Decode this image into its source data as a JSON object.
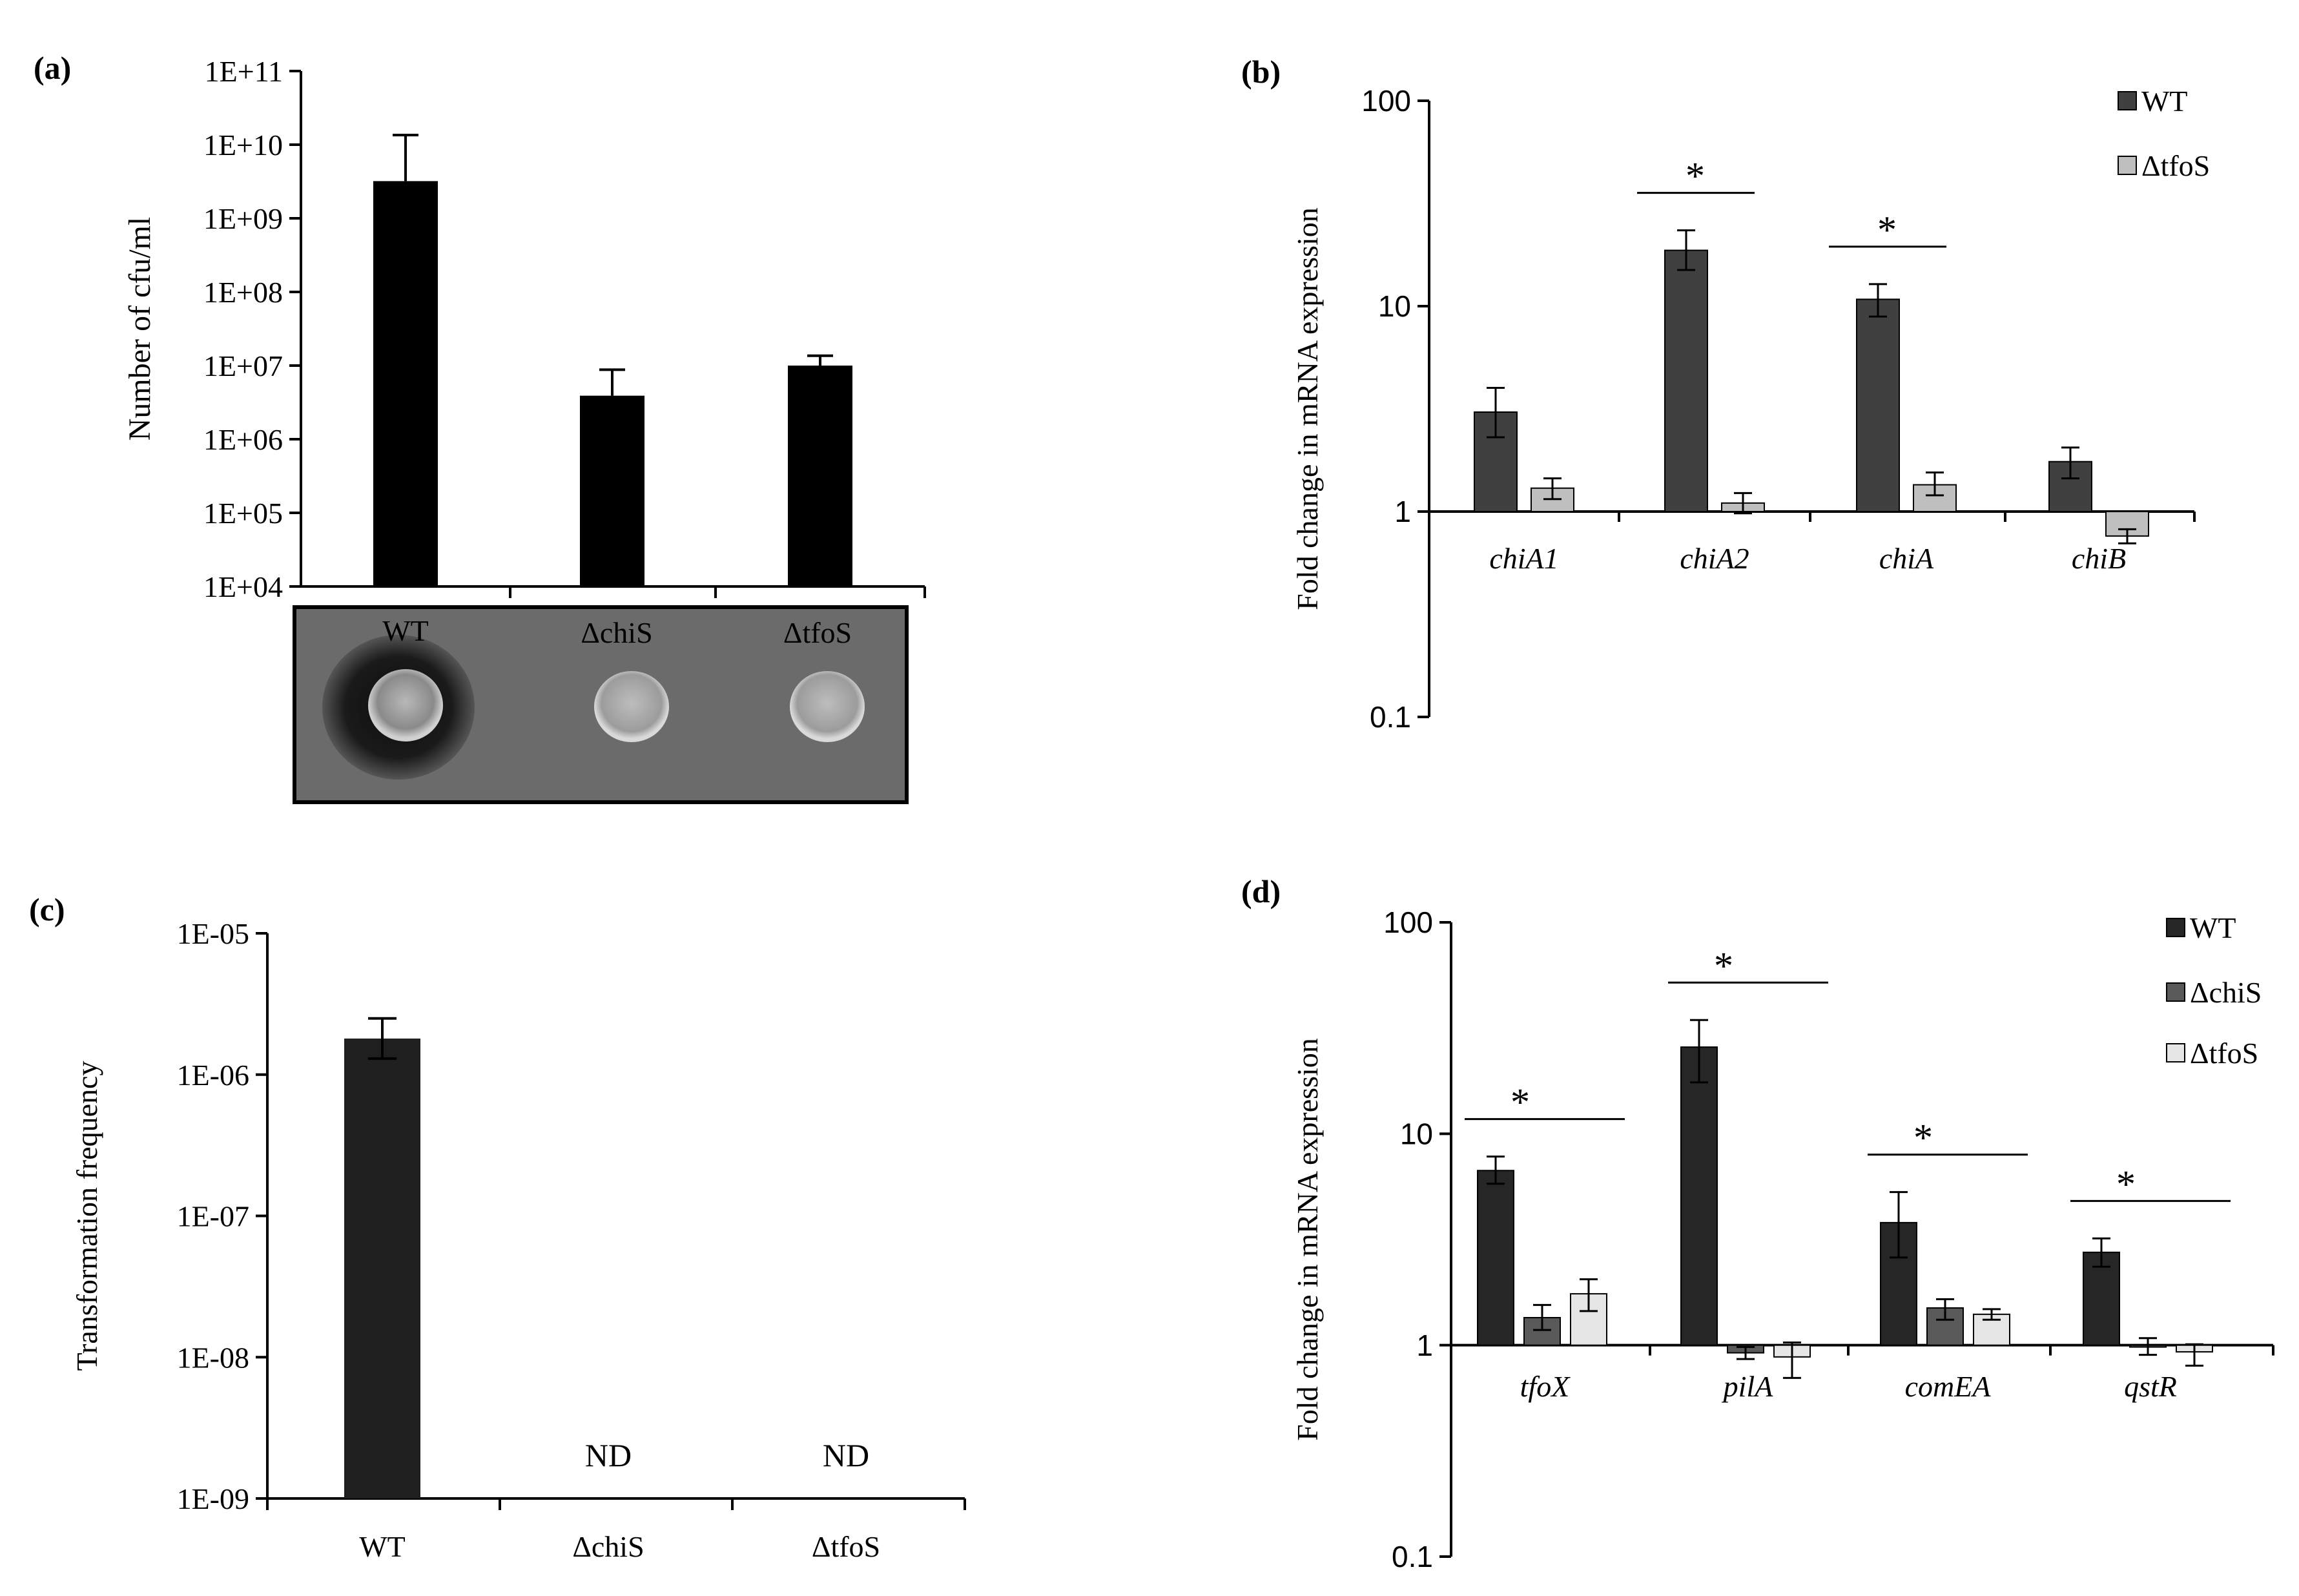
{
  "figure": {
    "panel_labels": [
      "(a)",
      "(b)",
      "(c)",
      "(d)"
    ],
    "plate_labels": [
      "WT",
      "ΔchiS",
      "ΔtfoS"
    ]
  },
  "chart_data": [
    {
      "panel": "(a)",
      "type": "bar",
      "scale": "log10",
      "ylabel": "Number of cfu/ml",
      "ylim": [
        10000,
        100000000000
      ],
      "yticks": [
        10000,
        100000,
        1000000,
        10000000,
        100000000,
        1000000000,
        10000000000,
        100000000000
      ],
      "ytick_labels": [
        "1E+04",
        "1E+05",
        "1E+06",
        "1E+07",
        "1E+08",
        "1E+09",
        "1E+10",
        "1E+11"
      ],
      "categories": [
        "WT",
        "ΔchiS",
        "ΔtfoS"
      ],
      "values": [
        3200000000,
        3900000,
        10000000
      ],
      "error_upper": [
        13500000000,
        8800000,
        13600000
      ],
      "color": "#000000"
    },
    {
      "panel": "(b)",
      "type": "bar",
      "scale": "log10",
      "ylabel": "Fold change in mRNA expression",
      "ylim": [
        0.1,
        100
      ],
      "yticks": [
        0.1,
        1,
        10,
        100
      ],
      "ytick_labels": [
        "0.1",
        "1",
        "10",
        "100"
      ],
      "categories": [
        "chiA1",
        "chiA2",
        "chiA",
        "chiB"
      ],
      "series": [
        {
          "name": "WT",
          "color": "#404040",
          "values": [
            3.05,
            18.7,
            10.8,
            1.75
          ],
          "err_lo": [
            2.3,
            15.0,
            8.9,
            1.45
          ],
          "err_hi": [
            4.0,
            23.4,
            12.8,
            2.05
          ]
        },
        {
          "name": "ΔtfoS",
          "color": "#bfbfbf",
          "values": [
            1.3,
            1.1,
            1.35,
            0.76
          ],
          "err_lo": [
            1.15,
            0.98,
            1.2,
            0.7
          ],
          "err_hi": [
            1.45,
            1.23,
            1.55,
            0.82
          ]
        }
      ],
      "significance": [
        {
          "category_index": 1,
          "label": "*"
        },
        {
          "category_index": 2,
          "label": "*"
        }
      ],
      "legend": "top-right"
    },
    {
      "panel": "(c)",
      "type": "bar",
      "scale": "log10",
      "ylabel": "Transformation frequency",
      "ylim": [
        1e-09,
        1e-05
      ],
      "yticks": [
        1e-09,
        1e-08,
        1e-07,
        1e-06,
        1e-05
      ],
      "ytick_labels": [
        "1E-09",
        "1E-08",
        "1E-07",
        "1E-06",
        "1E-05"
      ],
      "categories": [
        "WT",
        "ΔchiS",
        "ΔtfoS"
      ],
      "values": [
        1.8e-06,
        null,
        null
      ],
      "err_lo": [
        1.3e-06,
        null,
        null
      ],
      "err_hi": [
        2.5e-06,
        null,
        null
      ],
      "annotations": [
        "",
        "ND",
        "ND"
      ],
      "color": "#1f1f1f"
    },
    {
      "panel": "(d)",
      "type": "bar",
      "scale": "log10",
      "ylabel": "Fold change in mRNA expression",
      "ylim": [
        0.1,
        100
      ],
      "yticks": [
        0.1,
        1,
        10,
        100
      ],
      "ytick_labels": [
        "0.1",
        "1",
        "10",
        "100"
      ],
      "categories": [
        "tfoX",
        "pilA",
        "comEA",
        "qstR"
      ],
      "series": [
        {
          "name": "WT",
          "color": "#262626",
          "values": [
            6.7,
            25.7,
            3.8,
            2.75
          ],
          "err_lo": [
            5.8,
            17.5,
            2.6,
            2.35
          ],
          "err_hi": [
            7.8,
            34.5,
            5.3,
            3.2
          ]
        },
        {
          "name": "ΔchiS",
          "color": "#595959",
          "values": [
            1.35,
            0.92,
            1.5,
            0.98
          ],
          "err_lo": [
            1.18,
            0.86,
            1.32,
            0.9
          ],
          "err_hi": [
            1.55,
            0.98,
            1.65,
            1.08
          ]
        },
        {
          "name": "ΔtfoS",
          "color": "#e6e6e6",
          "values": [
            1.75,
            0.88,
            1.4,
            0.93
          ],
          "err_lo": [
            1.45,
            0.7,
            1.32,
            0.8
          ],
          "err_hi": [
            2.05,
            1.03,
            1.48,
            1.01
          ]
        }
      ],
      "significance": [
        {
          "category_index": 0,
          "label": "*"
        },
        {
          "category_index": 1,
          "label": "*"
        },
        {
          "category_index": 2,
          "label": "*"
        },
        {
          "category_index": 3,
          "label": "*"
        }
      ],
      "legend": "top-right"
    }
  ]
}
